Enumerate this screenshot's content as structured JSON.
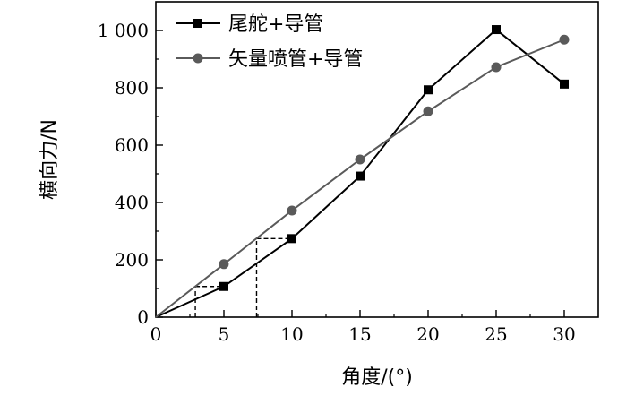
{
  "chart_data": {
    "type": "line",
    "title": "",
    "xlabel": "角度/(°)",
    "ylabel": "横向力/N",
    "xlim": [
      0,
      32.5
    ],
    "ylim": [
      0,
      1000
    ],
    "xticks": [
      0,
      5,
      10,
      15,
      20,
      25,
      30
    ],
    "yticks": [
      0,
      200,
      400,
      600,
      800,
      1000
    ],
    "xtick_labels": [
      "0",
      "5",
      "10",
      "15",
      "20",
      "25",
      "30"
    ],
    "ytick_labels": [
      "0",
      "200",
      "400",
      "600",
      "800",
      "1 000"
    ],
    "legend_position": "top-left",
    "grid": false,
    "series": [
      {
        "name": "尾舵+导管",
        "marker": "square",
        "color": "#000000",
        "x": [
          0,
          5,
          10,
          15,
          20,
          25,
          30
        ],
        "y": [
          0,
          107,
          274,
          492,
          793,
          1003,
          813
        ]
      },
      {
        "name": "矢量喷管+导管",
        "marker": "circle",
        "color": "#5a5a5a",
        "x": [
          0,
          5,
          10,
          15,
          20,
          25,
          30
        ],
        "y": [
          0,
          185,
          372,
          550,
          718,
          872,
          968
        ]
      }
    ],
    "annotations": [
      {
        "type": "dashed-guide",
        "x_from": 2.9,
        "x_to": 5,
        "y": 107
      },
      {
        "type": "dashed-guide",
        "x_from": 7.4,
        "x_to": 10,
        "y": 274
      }
    ]
  }
}
